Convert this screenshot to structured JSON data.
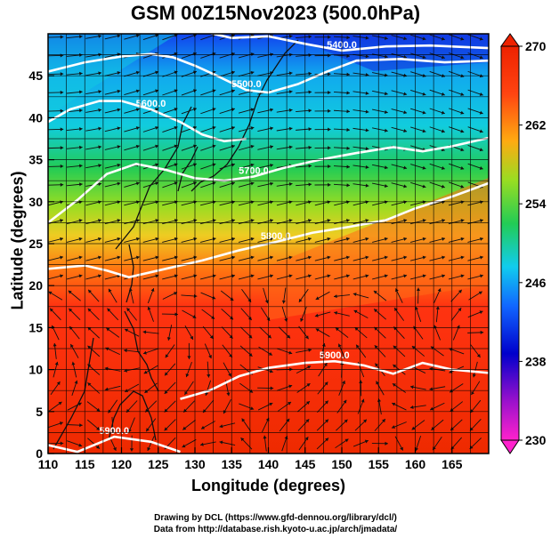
{
  "title": "GSM 00Z15Nov2023 (500.0hPa)",
  "chart_data": {
    "type": "heatmap",
    "title": "GSM 00Z15Nov2023 (500.0hPa)",
    "xlabel": "Longitude (degrees)",
    "ylabel": "Latitude (degrees)",
    "xlim": [
      110,
      170
    ],
    "ylim": [
      0,
      50
    ],
    "x_ticks": [
      "110",
      "115",
      "120",
      "125",
      "130",
      "135",
      "140",
      "145",
      "150",
      "155",
      "160",
      "165"
    ],
    "y_ticks": [
      "0",
      "5",
      "10",
      "15",
      "20",
      "25",
      "30",
      "35",
      "40",
      "45"
    ],
    "colorbar": {
      "min": 230,
      "max": 270,
      "ticks": [
        "230",
        "238",
        "246",
        "254",
        "262",
        "270"
      ],
      "colors": [
        "#ff00cc",
        "#6600cc",
        "#0000dd",
        "#1166ff",
        "#11ccee",
        "#22cc55",
        "#77dd22",
        "#ccdd22",
        "#ff9911",
        "#ff3311",
        "#ee2200"
      ]
    },
    "contours": [
      {
        "label": "5900.0",
        "points": [
          [
            110,
            1.0
          ],
          [
            114,
            0.2
          ],
          [
            119,
            2.0
          ],
          [
            124,
            1.4
          ],
          [
            128,
            0.2
          ]
        ]
      },
      {
        "label": "5900.0",
        "points": [
          [
            128,
            6.5
          ],
          [
            132,
            7.5
          ],
          [
            136,
            9.2
          ],
          [
            140,
            10.2
          ],
          [
            145,
            10.8
          ],
          [
            149,
            11.0
          ],
          [
            153,
            10.5
          ],
          [
            157,
            9.5
          ],
          [
            161,
            10.8
          ],
          [
            165,
            10.0
          ],
          [
            170,
            9.6
          ]
        ]
      },
      {
        "label": "5800.0",
        "points": [
          [
            110,
            22.0
          ],
          [
            115,
            22.4
          ],
          [
            118,
            21.8
          ],
          [
            121,
            21.0
          ],
          [
            126,
            22.0
          ],
          [
            131,
            23.0
          ],
          [
            136,
            24.2
          ],
          [
            141,
            25.2
          ],
          [
            146,
            26.3
          ],
          [
            151,
            27.0
          ],
          [
            156,
            27.8
          ],
          [
            160,
            29.2
          ],
          [
            165,
            30.6
          ],
          [
            170,
            32.2
          ]
        ]
      },
      {
        "label": "5700.0",
        "points": [
          [
            110,
            27.5
          ],
          [
            114,
            30.2
          ],
          [
            118,
            33.3
          ],
          [
            122,
            34.5
          ],
          [
            126,
            33.8
          ],
          [
            130,
            32.8
          ],
          [
            134,
            32.5
          ],
          [
            138,
            33.0
          ],
          [
            142,
            34.0
          ],
          [
            147,
            35.0
          ],
          [
            152,
            35.8
          ],
          [
            157,
            36.5
          ],
          [
            161,
            36.0
          ],
          [
            165,
            36.6
          ],
          [
            170,
            37.6
          ]
        ]
      },
      {
        "label": "5600.0",
        "points": [
          [
            110,
            39.5
          ],
          [
            113,
            41.0
          ],
          [
            117,
            42.0
          ],
          [
            120,
            42.0
          ],
          [
            124,
            41.0
          ],
          [
            128,
            39.5
          ],
          [
            131,
            38.0
          ],
          [
            134,
            37.2
          ],
          [
            137,
            37.5
          ]
        ]
      },
      {
        "label": "5500.0",
        "points": [
          [
            110,
            45.5
          ],
          [
            115,
            46.6
          ],
          [
            120,
            47.3
          ],
          [
            124,
            47.6
          ],
          [
            127,
            47.2
          ],
          [
            130,
            46.2
          ],
          [
            133,
            45.0
          ],
          [
            137,
            43.3
          ],
          [
            140,
            43.0
          ],
          [
            144,
            44.0
          ],
          [
            148,
            45.5
          ],
          [
            152,
            46.8
          ],
          [
            158,
            47.0
          ],
          [
            164,
            46.6
          ],
          [
            170,
            46.8
          ]
        ]
      },
      {
        "label": "5400.0",
        "points": [
          [
            130,
            50.5
          ],
          [
            135,
            49.5
          ],
          [
            140,
            49.7
          ],
          [
            145,
            48.8
          ],
          [
            150,
            48.0
          ],
          [
            156,
            48.5
          ],
          [
            162,
            48.6
          ],
          [
            170,
            48.3
          ]
        ]
      }
    ],
    "contour_labels": [
      "5400.0",
      "5500.0",
      "5600.0",
      "5700.0",
      "5800.0",
      "5900.0"
    ],
    "grid": true,
    "wind_field": "streamline arrows",
    "colorbar_position": "right"
  },
  "credits": {
    "line1": "Drawing by DCL (https://www.gfd-dennou.org/library/dcl/)",
    "line2": "Data from http://database.rish.kyoto-u.ac.jp/arch/jmadata/"
  }
}
